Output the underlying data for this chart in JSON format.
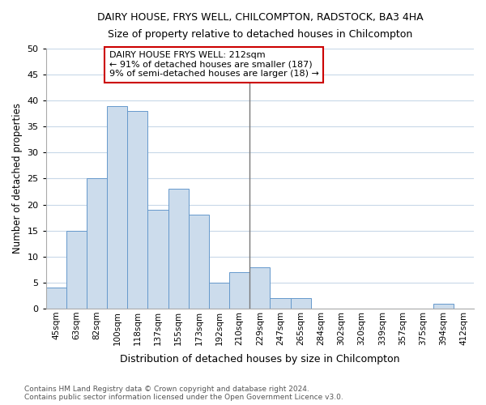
{
  "title1": "DAIRY HOUSE, FRYS WELL, CHILCOMPTON, RADSTOCK, BA3 4HA",
  "title2": "Size of property relative to detached houses in Chilcompton",
  "xlabel": "Distribution of detached houses by size in Chilcompton",
  "ylabel": "Number of detached properties",
  "footer1": "Contains HM Land Registry data © Crown copyright and database right 2024.",
  "footer2": "Contains public sector information licensed under the Open Government Licence v3.0.",
  "bar_labels": [
    "45sqm",
    "63sqm",
    "82sqm",
    "100sqm",
    "118sqm",
    "137sqm",
    "155sqm",
    "173sqm",
    "192sqm",
    "210sqm",
    "229sqm",
    "247sqm",
    "265sqm",
    "284sqm",
    "302sqm",
    "320sqm",
    "339sqm",
    "357sqm",
    "375sqm",
    "394sqm",
    "412sqm"
  ],
  "bar_values": [
    4,
    15,
    25,
    39,
    38,
    19,
    23,
    18,
    5,
    7,
    8,
    2,
    2,
    0,
    0,
    0,
    0,
    0,
    0,
    1,
    0
  ],
  "bar_color": "#ccdcec",
  "bar_edge_color": "#6699cc",
  "vline_x_index": 9,
  "vline_color": "#777777",
  "annotation_title": "DAIRY HOUSE FRYS WELL: 212sqm",
  "annotation_line1": "← 91% of detached houses are smaller (187)",
  "annotation_line2": "9% of semi-detached houses are larger (18) →",
  "annotation_box_facecolor": "#ffffff",
  "annotation_box_edgecolor": "#cc0000",
  "ylim": [
    0,
    50
  ],
  "yticks": [
    0,
    5,
    10,
    15,
    20,
    25,
    30,
    35,
    40,
    45,
    50
  ],
  "figure_facecolor": "#ffffff",
  "axes_facecolor": "#ffffff",
  "grid_color": "#c8d8e8"
}
